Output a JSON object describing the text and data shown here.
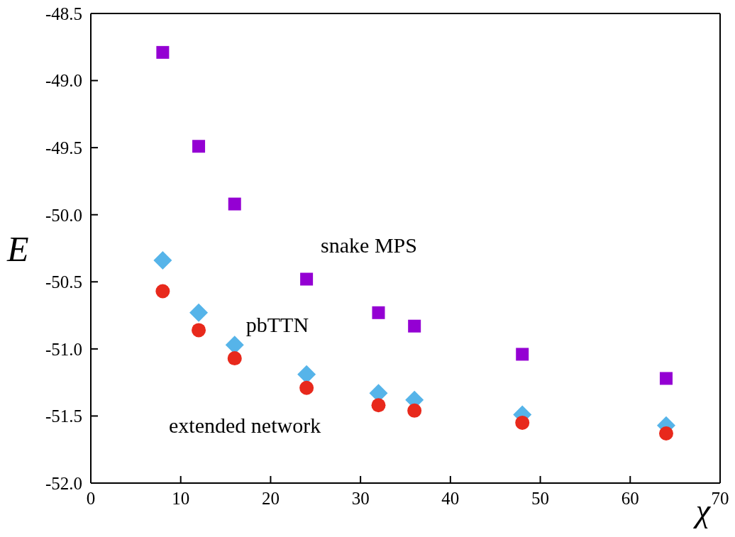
{
  "chart_data": {
    "type": "scatter",
    "xlabel": "χ",
    "ylabel": "E",
    "x": [
      8,
      12,
      16,
      24,
      32,
      36,
      48,
      64
    ],
    "series": [
      {
        "name": "snake MPS",
        "color": "#9400d3",
        "marker": "square",
        "values": [
          -48.79,
          -49.49,
          -49.92,
          -50.48,
          -50.73,
          -50.83,
          -51.04,
          -51.22
        ]
      },
      {
        "name": "pbTTN",
        "color": "#56b4e9",
        "marker": "diamond",
        "values": [
          -50.34,
          -50.73,
          -50.97,
          -51.19,
          -51.33,
          -51.38,
          -51.49,
          -51.57
        ]
      },
      {
        "name": "extended network",
        "color": "#e8291c",
        "marker": "circle",
        "values": [
          -50.57,
          -50.86,
          -51.07,
          -51.29,
          -51.42,
          -51.46,
          -51.55,
          -51.63
        ]
      }
    ],
    "xlim": [
      0,
      70
    ],
    "xticks": [
      0,
      10,
      20,
      30,
      40,
      50,
      60,
      70
    ],
    "ylim": [
      -52,
      -48.5
    ],
    "yticks": [
      {
        "value": -52,
        "label": "-52.0"
      },
      -51.5,
      {
        "value": -51,
        "label": "-51.0"
      },
      -50.5,
      {
        "value": -50,
        "label": "-50.0"
      },
      -49.5,
      {
        "value": -49,
        "label": "-49.0"
      },
      -48.5
    ],
    "legend": false
  }
}
